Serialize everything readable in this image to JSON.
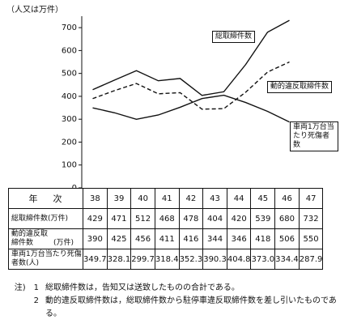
{
  "chart_data": {
    "type": "line",
    "y_label": "（人又は万件）",
    "header_label": "年　次",
    "categories": [
      "38",
      "39",
      "40",
      "41",
      "42",
      "43",
      "44",
      "45",
      "46",
      "47"
    ],
    "series": [
      {
        "name": "総取締件数",
        "unit": "(万件)",
        "color": "#111111",
        "line_style": "solid",
        "values": [
          429,
          471,
          512,
          468,
          478,
          404,
          420,
          539,
          680,
          732
        ]
      },
      {
        "name": "動的違反取締件数",
        "unit": "(万件)",
        "color": "#111111",
        "line_style": "dashed",
        "values": [
          390,
          425,
          456,
          411,
          416,
          344,
          346,
          418,
          506,
          550
        ]
      },
      {
        "name": "車両1万台当たり死傷者数",
        "unit": "(人)",
        "color": "#111111",
        "line_style": "solid",
        "values": [
          349.7,
          328.1,
          299.7,
          318.4,
          352.3,
          390.3,
          404.8,
          373.0,
          334.4,
          287.9
        ],
        "value_labels": [
          "349.7",
          "328.1",
          "299.7",
          "318.4",
          "352.3",
          "390.3",
          "404.8",
          "373.0",
          "334.4",
          "287.9"
        ]
      }
    ],
    "ylim": [
      0,
      750
    ],
    "yticks": [
      0,
      100,
      200,
      300,
      400,
      500,
      600,
      700
    ],
    "notes": [
      {
        "number": "1",
        "text": "総取締件数は，告知又は送致したものの合計である。"
      },
      {
        "number": "2",
        "text": "動的違反取締件数は，総取締件数から駐停車違反取締件数を差し引いたものである。"
      }
    ],
    "notes_prefix": "注)"
  }
}
